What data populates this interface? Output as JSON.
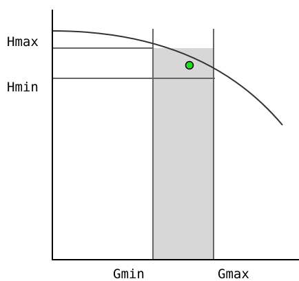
{
  "labels": {
    "hmax": "Hmax",
    "hmin": "Hmin",
    "gmin": "Gmin",
    "gmax": "Gmax"
  },
  "colors": {
    "axis": "#000000",
    "guide_lines": "#666666",
    "curve": "#333333",
    "shaded_region": "#d7d7d7",
    "point": "#22dd22",
    "point_outline": "#000000"
  }
}
